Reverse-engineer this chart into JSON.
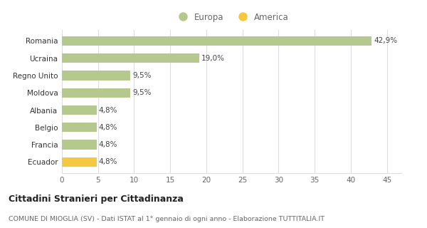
{
  "categories": [
    "Ecuador",
    "Francia",
    "Belgio",
    "Albania",
    "Moldova",
    "Regno Unito",
    "Ucraina",
    "Romania"
  ],
  "values": [
    4.8,
    4.8,
    4.8,
    4.8,
    9.5,
    9.5,
    19.0,
    42.9
  ],
  "labels": [
    "4,8%",
    "4,8%",
    "4,8%",
    "4,8%",
    "9,5%",
    "9,5%",
    "19,0%",
    "42,9%"
  ],
  "colors": [
    "#f5c842",
    "#b5c98e",
    "#b5c98e",
    "#b5c98e",
    "#b5c98e",
    "#b5c98e",
    "#b5c98e",
    "#b5c98e"
  ],
  "europa_color": "#b5c98e",
  "america_color": "#f5c842",
  "xlim": [
    0,
    47
  ],
  "xticks": [
    0,
    5,
    10,
    15,
    20,
    25,
    30,
    35,
    40,
    45
  ],
  "title": "Cittadini Stranieri per Cittadinanza",
  "subtitle": "COMUNE DI MIOGLIA (SV) - Dati ISTAT al 1° gennaio di ogni anno - Elaborazione TUTTITALIA.IT",
  "legend_europa": "Europa",
  "legend_america": "America",
  "bg_color": "#ffffff",
  "grid_color": "#dddddd"
}
